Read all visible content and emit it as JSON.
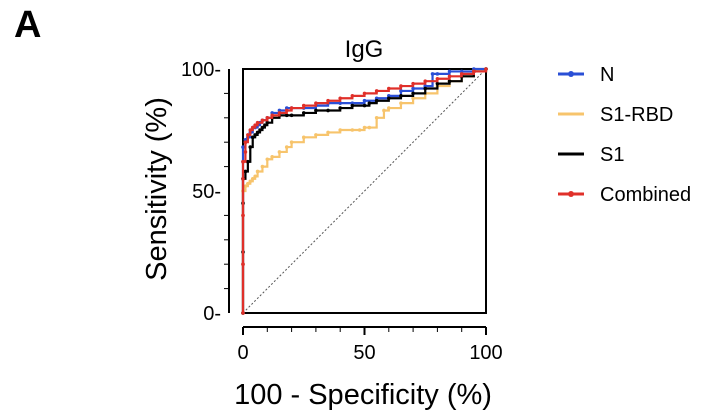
{
  "panel_label": "A",
  "chart_data": {
    "type": "line",
    "title": "IgG",
    "xlabel": "100 - Specificity (%)",
    "ylabel": "Sensitivity (%)",
    "xlim": [
      0,
      100
    ],
    "ylim": [
      0,
      100
    ],
    "xticks": [
      0,
      50,
      100
    ],
    "yticks": [
      0,
      50,
      100
    ],
    "tick_labels_x": [
      "0",
      "50",
      "100"
    ],
    "tick_labels_y": [
      "0-",
      "50-",
      "100-"
    ],
    "grid": false,
    "legend_position": "right",
    "reference_line": {
      "x": [
        0,
        100
      ],
      "y": [
        0,
        100
      ],
      "style": "dotted"
    },
    "series": [
      {
        "name": "N",
        "color": "#2a4fd6",
        "x": [
          0,
          0,
          0,
          0,
          0,
          0,
          1,
          1,
          2,
          3,
          4,
          5,
          6,
          7,
          8,
          10,
          12,
          15,
          18,
          20,
          25,
          30,
          35,
          40,
          45,
          50,
          55,
          60,
          65,
          70,
          75,
          78,
          80,
          85,
          90,
          95,
          100
        ],
        "y": [
          0,
          20,
          40,
          55,
          62,
          68,
          70,
          71,
          72,
          74,
          76,
          76,
          77,
          78,
          79,
          80,
          82,
          83,
          84,
          84,
          84,
          85,
          86,
          86,
          86,
          87,
          88,
          89,
          91,
          92,
          93,
          98,
          98,
          99,
          99,
          100,
          100
        ]
      },
      {
        "name": "S1-RBD",
        "color": "#f7c46c",
        "x": [
          0,
          0,
          0,
          0,
          1,
          2,
          3,
          4,
          5,
          6,
          8,
          10,
          12,
          15,
          18,
          20,
          25,
          30,
          35,
          40,
          45,
          48,
          50,
          52,
          55,
          58,
          60,
          65,
          70,
          75,
          80,
          85,
          90,
          95,
          100
        ],
        "y": [
          0,
          20,
          40,
          50,
          52,
          53,
          54,
          55,
          56,
          58,
          60,
          63,
          64,
          66,
          68,
          70,
          72,
          73,
          74,
          75,
          75,
          75,
          76,
          76,
          80,
          83,
          84,
          86,
          88,
          90,
          93,
          95,
          97,
          99,
          100
        ]
      },
      {
        "name": "S1",
        "color": "#000000",
        "x": [
          0,
          0,
          0,
          0,
          1,
          2,
          3,
          4,
          5,
          6,
          7,
          8,
          9,
          10,
          12,
          15,
          18,
          20,
          25,
          30,
          35,
          40,
          45,
          50,
          52,
          55,
          60,
          65,
          70,
          75,
          80,
          85,
          90,
          95,
          100
        ],
        "y": [
          0,
          25,
          45,
          55,
          58,
          62,
          68,
          72,
          73,
          74,
          75,
          76,
          77,
          78,
          80,
          81,
          81,
          81,
          82,
          83,
          83,
          84,
          85,
          85,
          86,
          87,
          88,
          89,
          90,
          92,
          94,
          95,
          97,
          99,
          100
        ]
      },
      {
        "name": "Combined",
        "color": "#e0302a",
        "x": [
          0,
          0,
          0,
          0,
          0,
          1,
          1,
          2,
          3,
          4,
          5,
          6,
          8,
          10,
          12,
          15,
          18,
          20,
          25,
          30,
          35,
          40,
          45,
          50,
          55,
          60,
          65,
          70,
          75,
          80,
          85,
          90,
          95,
          100
        ],
        "y": [
          0,
          20,
          40,
          55,
          62,
          66,
          70,
          73,
          75,
          76,
          77,
          78,
          79,
          80,
          81,
          82,
          83,
          84,
          85,
          86,
          87,
          88,
          89,
          90,
          91,
          92,
          93,
          94,
          95,
          96,
          97,
          98,
          99,
          100
        ]
      }
    ]
  }
}
